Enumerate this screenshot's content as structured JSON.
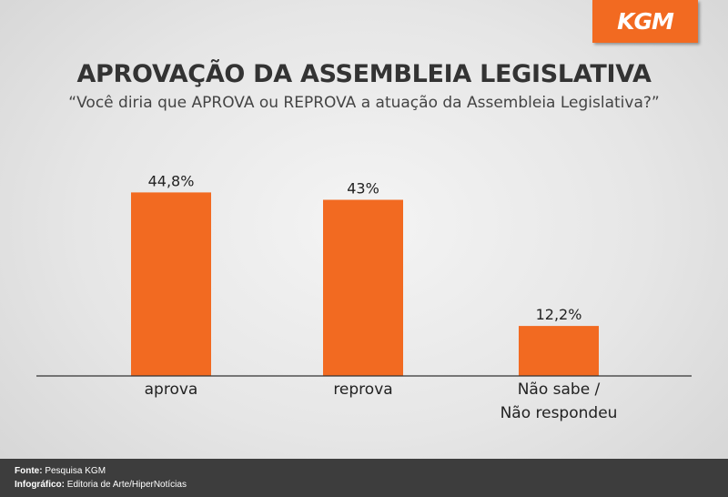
{
  "brand": {
    "logo_text": "KGM",
    "accent_color": "#f26a21"
  },
  "chart_data": {
    "type": "bar",
    "title": "APROVAÇÃO DA ASSEMBLEIA LEGISLATIVA",
    "subtitle": "“Você diria que APROVA ou REPROVA a atuação da Assembleia Legislativa?”",
    "categories": [
      [
        "aprova"
      ],
      [
        "reprova"
      ],
      [
        "Não sabe /",
        "Não respondeu"
      ]
    ],
    "values": [
      44.8,
      43,
      12.2
    ],
    "value_labels": [
      "44,8%",
      "43%",
      "12,2%"
    ],
    "bar_color": "#f26a21",
    "ylim": [
      0,
      50
    ],
    "grid": false
  },
  "footer": {
    "source_label": "Fonte:",
    "source_value": "Pesquisa KGM",
    "credit_label": "Infográfico:",
    "credit_value": "Editoria de Arte/HiperNotícias"
  }
}
